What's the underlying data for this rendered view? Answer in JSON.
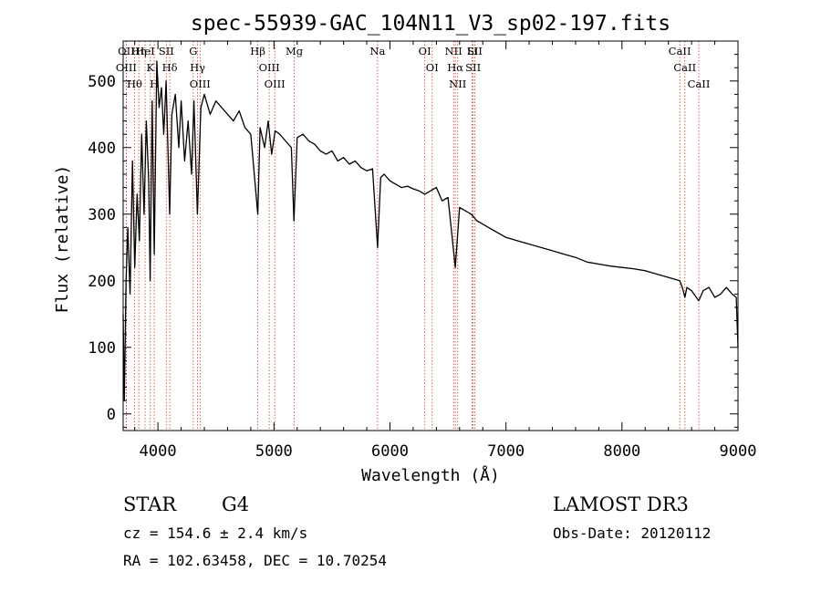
{
  "chart_data": {
    "type": "line",
    "title": "spec-55939-GAC_104N11_V3_sp02-197.fits",
    "xlabel": "Wavelength (Å)",
    "ylabel": "Flux (relative)",
    "xlim": [
      3700,
      9000
    ],
    "ylim": [
      -25,
      560
    ],
    "x_ticks": [
      4000,
      5000,
      6000,
      7000,
      8000,
      9000
    ],
    "x_tick_labels": [
      "4000",
      "5000",
      "6000",
      "7000",
      "8000",
      "9000"
    ],
    "y_ticks": [
      0,
      100,
      200,
      300,
      400,
      500
    ],
    "y_tick_labels": [
      "0",
      "100",
      "200",
      "300",
      "400",
      "500"
    ],
    "series": [
      {
        "name": "flux",
        "x": [
          3700,
          3710,
          3725,
          3740,
          3760,
          3780,
          3800,
          3820,
          3840,
          3860,
          3880,
          3900,
          3920,
          3933,
          3950,
          3968,
          3990,
          4010,
          4030,
          4050,
          4070,
          4101,
          4120,
          4150,
          4180,
          4200,
          4230,
          4260,
          4290,
          4310,
          4340,
          4370,
          4400,
          4450,
          4500,
          4550,
          4600,
          4650,
          4700,
          4750,
          4800,
          4861,
          4880,
          4920,
          4950,
          4980,
          5010,
          5050,
          5100,
          5150,
          5172,
          5200,
          5250,
          5300,
          5350,
          5400,
          5450,
          5500,
          5550,
          5600,
          5650,
          5700,
          5750,
          5800,
          5850,
          5893,
          5920,
          5950,
          6000,
          6050,
          6100,
          6150,
          6200,
          6250,
          6300,
          6350,
          6400,
          6450,
          6500,
          6563,
          6600,
          6650,
          6700,
          6750,
          6800,
          6850,
          6900,
          6950,
          7000,
          7100,
          7200,
          7300,
          7400,
          7500,
          7600,
          7700,
          7800,
          7900,
          8000,
          8100,
          8200,
          8300,
          8400,
          8498,
          8520,
          8542,
          8560,
          8600,
          8662,
          8700,
          8750,
          8800,
          8850,
          8900,
          8950,
          8985,
          9000
        ],
        "values": [
          150,
          20,
          200,
          280,
          180,
          380,
          220,
          330,
          260,
          420,
          300,
          440,
          350,
          200,
          470,
          240,
          530,
          460,
          490,
          420,
          500,
          300,
          450,
          480,
          400,
          470,
          380,
          440,
          360,
          470,
          300,
          460,
          480,
          450,
          470,
          460,
          450,
          440,
          455,
          430,
          420,
          300,
          430,
          400,
          440,
          390,
          425,
          420,
          410,
          400,
          290,
          415,
          420,
          410,
          405,
          395,
          390,
          395,
          380,
          385,
          375,
          380,
          370,
          365,
          368,
          250,
          355,
          360,
          350,
          345,
          340,
          342,
          338,
          335,
          330,
          335,
          340,
          320,
          325,
          220,
          310,
          305,
          300,
          290,
          285,
          280,
          275,
          270,
          265,
          260,
          255,
          250,
          245,
          240,
          235,
          228,
          225,
          222,
          220,
          218,
          215,
          210,
          205,
          200,
          190,
          175,
          190,
          185,
          170,
          185,
          190,
          175,
          180,
          190,
          180,
          175,
          100
        ]
      }
    ],
    "lines": [
      {
        "label": "Hθ",
        "x": 3798
      },
      {
        "label": "OII",
        "x": 3727
      },
      {
        "label": "OIII",
        "x": 3727
      },
      {
        "label": "HeI",
        "x": 3889
      },
      {
        "label": "Hη",
        "x": 3835
      },
      {
        "label": "K",
        "x": 3934
      },
      {
        "label": "SII",
        "x": 4072
      },
      {
        "label": "Hδ",
        "x": 4102
      },
      {
        "label": "H",
        "x": 3968
      },
      {
        "label": "OIII",
        "x": 4363
      },
      {
        "label": "Hγ",
        "x": 4341
      },
      {
        "label": "G",
        "x": 4304
      },
      {
        "label": "OIII",
        "x": 4959
      },
      {
        "label": "OIII",
        "x": 5007
      },
      {
        "label": "Hβ",
        "x": 4861
      },
      {
        "label": "Mg",
        "x": 5175
      },
      {
        "label": "Na",
        "x": 5893
      },
      {
        "label": "OI",
        "x": 6300
      },
      {
        "label": "OI",
        "x": 6364
      },
      {
        "label": "Hα",
        "x": 6563
      },
      {
        "label": "NII",
        "x": 6548
      },
      {
        "label": "NII",
        "x": 6584
      },
      {
        "label": "SII",
        "x": 6717
      },
      {
        "label": "SII",
        "x": 6731
      },
      {
        "label": "Li",
        "x": 6708
      },
      {
        "label": "CaII",
        "x": 8662
      },
      {
        "label": "CaII",
        "x": 8498
      },
      {
        "label": "CaII",
        "x": 8542
      }
    ]
  },
  "info": {
    "class": "STAR",
    "subclass": "G4",
    "cz": "cz = 154.6 ± 2.4 km/s",
    "radec": "RA = 102.63458, DEC =  10.70254",
    "survey": "LAMOST DR3",
    "obsdate": "Obs-Date: 20120112"
  }
}
